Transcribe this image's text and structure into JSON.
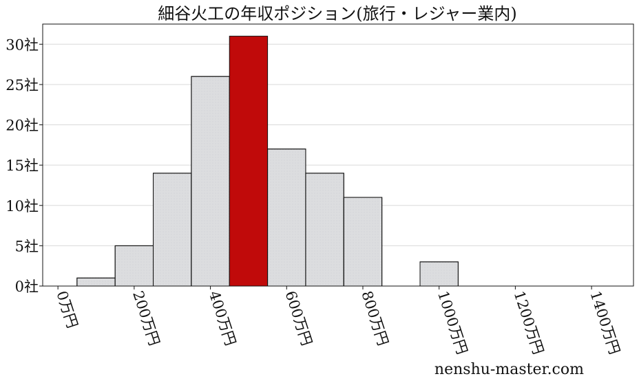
{
  "chart_data": {
    "type": "bar",
    "title": "細谷火工の年収ポジション(旅行・レジャー業内)",
    "x_unit": "万円",
    "y_unit": "社",
    "bin_width": 100,
    "bins": [
      {
        "x_start": 50,
        "x_end": 150,
        "count": 1,
        "highlight": false
      },
      {
        "x_start": 150,
        "x_end": 250,
        "count": 5,
        "highlight": false
      },
      {
        "x_start": 250,
        "x_end": 350,
        "count": 14,
        "highlight": false
      },
      {
        "x_start": 350,
        "x_end": 450,
        "count": 26,
        "highlight": false
      },
      {
        "x_start": 450,
        "x_end": 550,
        "count": 31,
        "highlight": true
      },
      {
        "x_start": 550,
        "x_end": 650,
        "count": 17,
        "highlight": false
      },
      {
        "x_start": 650,
        "x_end": 750,
        "count": 14,
        "highlight": false
      },
      {
        "x_start": 750,
        "x_end": 850,
        "count": 11,
        "highlight": false
      },
      {
        "x_start": 950,
        "x_end": 1050,
        "count": 3,
        "highlight": false
      }
    ],
    "xlim": [
      -40,
      1510
    ],
    "ylim": [
      0,
      32.5
    ],
    "x_ticks": [
      0,
      200,
      400,
      600,
      800,
      1000,
      1200,
      1400
    ],
    "x_tick_labels": [
      "0万円",
      "200万円",
      "400万円",
      "600万円",
      "800万円",
      "1000万円",
      "1200万円",
      "1400万円"
    ],
    "y_ticks": [
      0,
      5,
      10,
      15,
      20,
      25,
      30
    ],
    "y_tick_labels": [
      "0社",
      "5社",
      "10社",
      "15社",
      "20社",
      "25社",
      "30社"
    ],
    "grid": {
      "y": true,
      "x": false
    },
    "colors": {
      "bar": "#dcdddf",
      "highlight": "#c00a0a",
      "edge": "#111111",
      "grid": "#d9d9d9"
    }
  },
  "watermark": "nenshu-master.com"
}
